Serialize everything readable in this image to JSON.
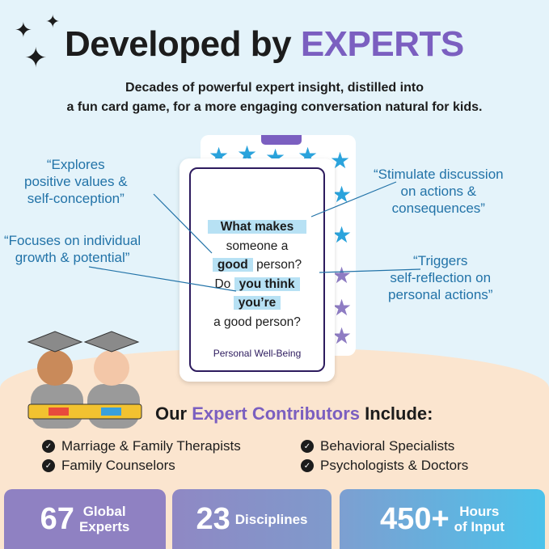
{
  "header": {
    "title_prefix": "Developed by ",
    "title_accent": "EXPERTS",
    "subtitle_line1": "Decades of powerful expert insight, distilled into",
    "subtitle_line2": "a fun card game, for a more engaging conversation natural for kids."
  },
  "card": {
    "line1": "What makes",
    "line2": "someone a",
    "line3_hl": "good",
    "line3_rest": " person?",
    "line4_pre": "Do ",
    "line4_hl": "you think",
    "line5_hl": "you’re",
    "line6": "a good person?",
    "category": "Personal Well-Being"
  },
  "quotes": [
    {
      "text1": "“Explores",
      "text2": "positive values &",
      "text3": "self-conception”"
    },
    {
      "text1": "“Focuses on individual",
      "text2": "growth & potential”"
    },
    {
      "text1": "“Stimulate discussion",
      "text2": "on actions &",
      "text3": "consequences”"
    },
    {
      "text1": "“Triggers",
      "text2": "self-reflection on",
      "text3": "personal actions”"
    }
  ],
  "contributors": {
    "prefix": "Our ",
    "accent": "Expert Contributors",
    "suffix": " Include:",
    "items": [
      "Marriage & Family Therapists",
      "Behavioral Specialists",
      "Family Counselors",
      "Psychologists & Doctors"
    ]
  },
  "stats": [
    {
      "number": "67",
      "label1": "Global",
      "label2": "Experts"
    },
    {
      "number": "23",
      "label1": "Disciplines"
    },
    {
      "number": "450+",
      "label1": "Hours",
      "label2": "of Input"
    }
  ],
  "colors": {
    "accent": "#7b5fc0",
    "quote": "#2273a8",
    "highlight": "#b7e1f4"
  }
}
